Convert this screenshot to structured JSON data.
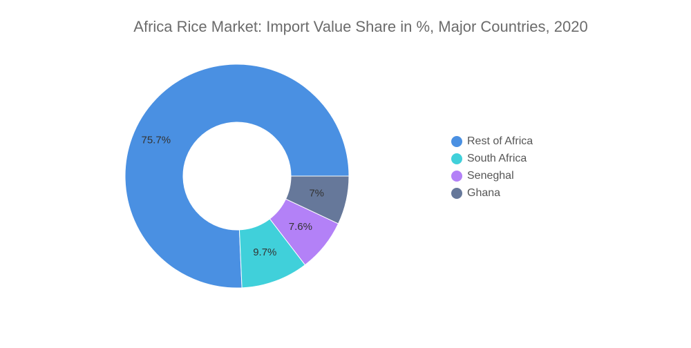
{
  "chart_data": {
    "type": "donut",
    "title": "Africa Rice Market: Import Value Share in %, Major Countries, 2020",
    "categories": [
      "Rest of Africa",
      "South Africa",
      "Seneghal",
      "Ghana"
    ],
    "values": [
      75.7,
      9.7,
      7.6,
      7
    ],
    "value_labels": [
      "75.7%",
      "9.7%",
      "7.6%",
      "7%"
    ],
    "colors": [
      "#4a90e2",
      "#40d0da",
      "#b381f7",
      "#66789a"
    ],
    "legend": "right"
  }
}
